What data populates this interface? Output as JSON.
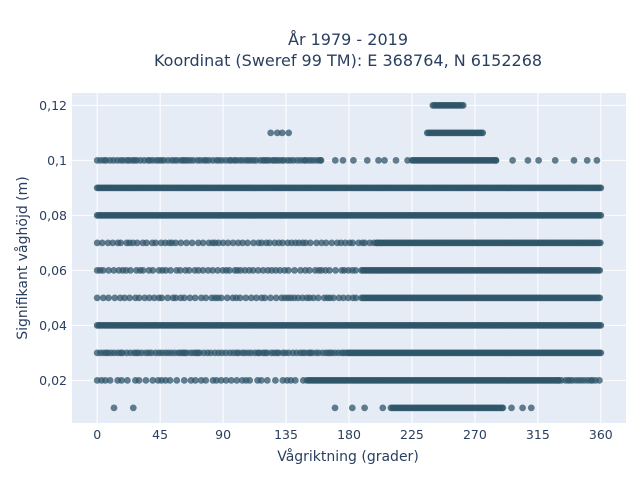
{
  "chart_data": {
    "type": "scatter",
    "title": [
      "År 1979 - 2019",
      "Koordinat (Sweref 99 TM): E 368764, N 6152268"
    ],
    "xlabel": "Vågriktning (grader)",
    "ylabel": "Signifikant våghöjd (m)",
    "xlim": [
      -18,
      378
    ],
    "ylim": [
      0.0045,
      0.1245
    ],
    "x_ticks": [
      0,
      45,
      90,
      135,
      180,
      225,
      270,
      315,
      360
    ],
    "y_ticks": [
      0.02,
      0.04,
      0.06,
      0.08,
      0.1,
      0.12
    ],
    "y_tick_labels": [
      "0,02",
      "0,04",
      "0,06",
      "0,08",
      "0,1",
      "0,12"
    ],
    "grid": true,
    "marker_color": "#2f5569",
    "background": "#e5ecf6",
    "series": [
      {
        "rows": [
          {
            "y": 0.12,
            "dense": [
              [
                240,
                262
              ]
            ],
            "sparse": []
          },
          {
            "y": 0.11,
            "dense": [
              [
                236,
                276
              ]
            ],
            "sparse": [
              [
                124,
                142,
                4
              ]
            ]
          },
          {
            "y": 0.1,
            "dense": [
              [
                225,
                285
              ]
            ],
            "sparse": [
              [
                0,
                160,
                2
              ],
              [
                160,
                225,
                7
              ],
              [
                285,
                360,
                9
              ]
            ]
          },
          {
            "y": 0.09,
            "dense": [
              [
                0,
                360
              ]
            ],
            "sparse": []
          },
          {
            "y": 0.08,
            "dense": [
              [
                0,
                360
              ]
            ],
            "sparse": []
          },
          {
            "y": 0.07,
            "dense": [
              [
                200,
                360
              ]
            ],
            "sparse": [
              [
                0,
                200,
                3
              ]
            ]
          },
          {
            "y": 0.06,
            "dense": [
              [
                190,
                360
              ]
            ],
            "sparse": [
              [
                0,
                190,
                3
              ]
            ]
          },
          {
            "y": 0.05,
            "dense": [
              [
                190,
                360
              ]
            ],
            "sparse": [
              [
                0,
                190,
                3
              ]
            ]
          },
          {
            "y": 0.04,
            "dense": [
              [
                0,
                360
              ]
            ],
            "sparse": []
          },
          {
            "y": 0.03,
            "dense": [
              [
                180,
                360
              ]
            ],
            "sparse": [
              [
                0,
                180,
                2
              ]
            ]
          },
          {
            "y": 0.02,
            "dense": [
              [
                150,
                330
              ]
            ],
            "sparse": [
              [
                0,
                150,
                4
              ],
              [
                330,
                360,
                2
              ]
            ]
          },
          {
            "y": 0.01,
            "dense": [
              [
                210,
                290
              ]
            ],
            "sparse": [
              [
                12,
                32,
                10
              ],
              [
                170,
                210,
                12
              ],
              [
                290,
                316,
                6
              ]
            ]
          }
        ]
      }
    ]
  }
}
